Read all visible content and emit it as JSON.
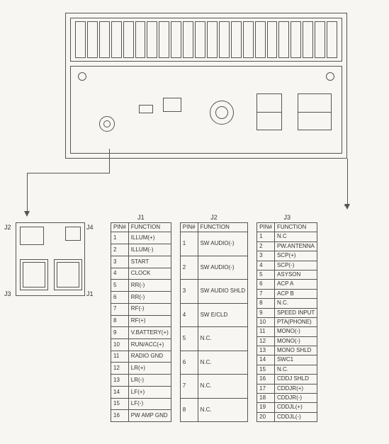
{
  "diagram": {
    "background": "#f8f6f2",
    "line_color": "#555555",
    "fin_count": 22
  },
  "connectors": {
    "labels": {
      "j1": "J1",
      "j2": "J2",
      "j3": "J3",
      "j4": "J4"
    }
  },
  "tables": {
    "header": {
      "pin": "PIN#",
      "func": "FUNCTION"
    },
    "j1": {
      "title": "J1",
      "rows": [
        {
          "pin": "1",
          "func": "ILLUM(+)"
        },
        {
          "pin": "2",
          "func": "ILLUM(-)"
        },
        {
          "pin": "3",
          "func": "START"
        },
        {
          "pin": "4",
          "func": "CLOCK"
        },
        {
          "pin": "5",
          "func": "RR(-)"
        },
        {
          "pin": "6",
          "func": "RR(-)"
        },
        {
          "pin": "7",
          "func": "RF(-)"
        },
        {
          "pin": "8",
          "func": "RF(+)"
        },
        {
          "pin": "9",
          "func": "V.BATTERY(+)"
        },
        {
          "pin": "10",
          "func": "RUN/ACC(+)"
        },
        {
          "pin": "11",
          "func": "RADIO GND"
        },
        {
          "pin": "12",
          "func": "LR(+)"
        },
        {
          "pin": "13",
          "func": "LR(-)"
        },
        {
          "pin": "14",
          "func": "LF(+)"
        },
        {
          "pin": "15",
          "func": "LF(-)"
        },
        {
          "pin": "16",
          "func": "PW AMP GND"
        }
      ]
    },
    "j2": {
      "title": "J2",
      "rows": [
        {
          "pin": "1",
          "func": "SW AUDIO(-)"
        },
        {
          "pin": "2",
          "func": "SW AUDIO(-)"
        },
        {
          "pin": "3",
          "func": "SW AUDIO SHLD"
        },
        {
          "pin": "4",
          "func": "SW E/CLD"
        },
        {
          "pin": "5",
          "func": "N.C."
        },
        {
          "pin": "6",
          "func": "N.C."
        },
        {
          "pin": "7",
          "func": "N.C."
        },
        {
          "pin": "8",
          "func": "N.C."
        }
      ]
    },
    "j3": {
      "title": "J3",
      "rows": [
        {
          "pin": "1",
          "func": "N.C"
        },
        {
          "pin": "2",
          "func": "PW.ANTENNA"
        },
        {
          "pin": "3",
          "func": "SCP(+)"
        },
        {
          "pin": "4",
          "func": "SCP(-)"
        },
        {
          "pin": "5",
          "func": "ASYSON"
        },
        {
          "pin": "6",
          "func": "ACP A"
        },
        {
          "pin": "7",
          "func": "ACP B"
        },
        {
          "pin": "8",
          "func": "N.C."
        },
        {
          "pin": "9",
          "func": "SPEED INPUT"
        },
        {
          "pin": "10",
          "func": "PTA(PHONE)"
        },
        {
          "pin": "11",
          "func": "MONO(-)"
        },
        {
          "pin": "12",
          "func": "MONO(-)"
        },
        {
          "pin": "13",
          "func": "MONO SHLD"
        },
        {
          "pin": "14",
          "func": "SWC1"
        },
        {
          "pin": "15",
          "func": "N.C."
        },
        {
          "pin": "16",
          "func": "CDDJ SHLD"
        },
        {
          "pin": "17",
          "func": "CDDJR(+)"
        },
        {
          "pin": "18",
          "func": "CDDJR(-)"
        },
        {
          "pin": "19",
          "func": "CDDJL(+)"
        },
        {
          "pin": "20",
          "func": "CDDJL(-)"
        }
      ]
    }
  }
}
